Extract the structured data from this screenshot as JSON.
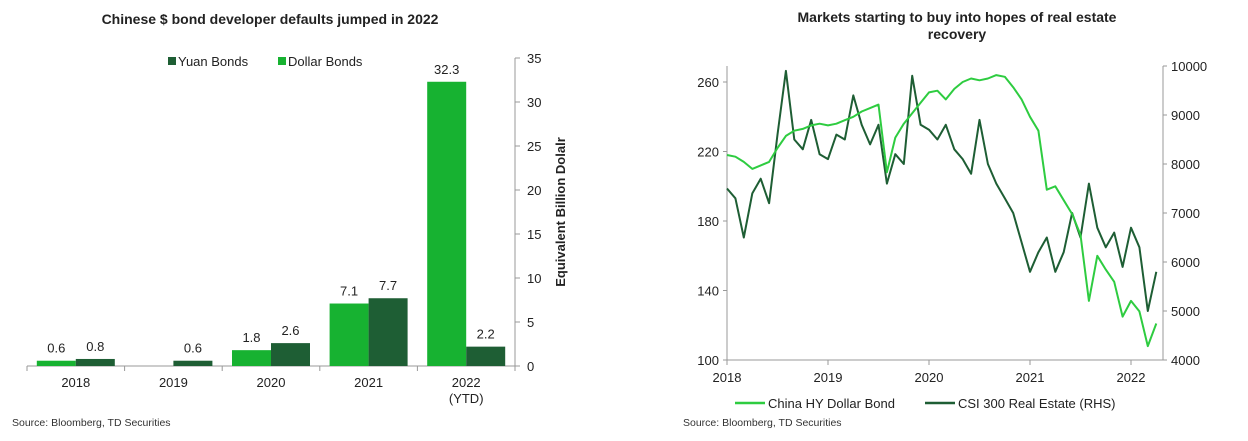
{
  "chart_data": [
    {
      "type": "bar",
      "title": "Chinese $ bond developer defaults  jumped in 2022",
      "categories": [
        "2018",
        "2019",
        "2020",
        "2021",
        "2022\n(YTD)"
      ],
      "series": [
        {
          "name": "Dollar Bonds",
          "color": "#17b231",
          "values": [
            0.6,
            null,
            1.8,
            7.1,
            32.3
          ]
        },
        {
          "name": "Yuan Bonds",
          "color": "#1e5e34",
          "values": [
            0.8,
            0.6,
            2.6,
            7.7,
            2.2
          ]
        }
      ],
      "data_labels": [
        [
          "0.6",
          "",
          "1.8",
          "7.1",
          "32.3"
        ],
        [
          "0.8",
          "0.6",
          "2.6",
          "7.7",
          "2.2"
        ]
      ],
      "legend_order": [
        "Yuan Bonds",
        "Dollar Bonds"
      ],
      "legend_placement": "top-center",
      "ylabel": "Equivalent Billion Dolalr",
      "y_axis_side": "right",
      "ylim": [
        0,
        35
      ],
      "yticks": [
        "0",
        "5",
        "10",
        "15",
        "20",
        "25",
        "30",
        "35"
      ],
      "grid": false,
      "source": "Source: Bloomberg, TD Securities"
    },
    {
      "type": "line",
      "title": "Markets starting to buy into hopes of real estate recovery",
      "xlim": [
        "2018-01",
        "2022-04"
      ],
      "xticks": [
        "2018",
        "2019",
        "2020",
        "2021",
        "2022"
      ],
      "y_left": {
        "lim": [
          100,
          260
        ],
        "ticks": [
          "100",
          "140",
          "180",
          "220",
          "260"
        ]
      },
      "y_right": {
        "lim": [
          4000,
          10000
        ],
        "ticks": [
          "4000",
          "5000",
          "6000",
          "7000",
          "8000",
          "9000",
          "10000"
        ]
      },
      "grid": false,
      "legend_placement": "bottom",
      "series": [
        {
          "name": "China HY Dollar Bond",
          "axis": "left",
          "color": "#2ecc40",
          "points": [
            [
              "2018-01",
              218
            ],
            [
              "2018-02",
              217
            ],
            [
              "2018-03",
              214
            ],
            [
              "2018-04",
              210
            ],
            [
              "2018-05",
              212
            ],
            [
              "2018-06",
              214
            ],
            [
              "2018-07",
              222
            ],
            [
              "2018-08",
              229
            ],
            [
              "2018-09",
              232
            ],
            [
              "2018-10",
              233
            ],
            [
              "2018-11",
              235
            ],
            [
              "2018-12",
              236
            ],
            [
              "2019-01",
              235
            ],
            [
              "2019-02",
              236
            ],
            [
              "2019-03",
              238
            ],
            [
              "2019-04",
              240
            ],
            [
              "2019-05",
              243
            ],
            [
              "2019-06",
              245
            ],
            [
              "2019-07",
              247
            ],
            [
              "2019-08",
              208
            ],
            [
              "2019-09",
              228
            ],
            [
              "2019-10",
              236
            ],
            [
              "2019-11",
              242
            ],
            [
              "2019-12",
              248
            ],
            [
              "2020-01",
              254
            ],
            [
              "2020-02",
              255
            ],
            [
              "2020-03",
              250
            ],
            [
              "2020-04",
              256
            ],
            [
              "2020-05",
              260
            ],
            [
              "2020-06",
              262
            ],
            [
              "2020-07",
              261
            ],
            [
              "2020-08",
              262
            ],
            [
              "2020-09",
              264
            ],
            [
              "2020-10",
              263
            ],
            [
              "2020-11",
              257
            ],
            [
              "2020-12",
              250
            ],
            [
              "2021-01",
              240
            ],
            [
              "2021-02",
              232
            ],
            [
              "2021-03",
              198
            ],
            [
              "2021-04",
              200
            ],
            [
              "2021-05",
              192
            ],
            [
              "2021-06",
              184
            ],
            [
              "2021-07",
              172
            ],
            [
              "2021-08",
              134
            ],
            [
              "2021-09",
              160
            ],
            [
              "2021-10",
              152
            ],
            [
              "2021-11",
              145
            ],
            [
              "2021-12",
              125
            ],
            [
              "2022-01",
              134
            ],
            [
              "2022-02",
              128
            ],
            [
              "2022-03",
              108
            ],
            [
              "2022-04",
              121
            ]
          ]
        },
        {
          "name": "CSI 300 Real Estate (RHS)",
          "axis": "right",
          "color": "#1e5e34",
          "points": [
            [
              "2018-01",
              7500
            ],
            [
              "2018-02",
              7300
            ],
            [
              "2018-03",
              6500
            ],
            [
              "2018-04",
              7400
            ],
            [
              "2018-05",
              7700
            ],
            [
              "2018-06",
              7200
            ],
            [
              "2018-07",
              8600
            ],
            [
              "2018-08",
              9900
            ],
            [
              "2018-09",
              8500
            ],
            [
              "2018-10",
              8300
            ],
            [
              "2018-11",
              8900
            ],
            [
              "2018-12",
              8200
            ],
            [
              "2019-01",
              8100
            ],
            [
              "2019-02",
              8600
            ],
            [
              "2019-03",
              8500
            ],
            [
              "2019-04",
              9400
            ],
            [
              "2019-05",
              8800
            ],
            [
              "2019-06",
              8400
            ],
            [
              "2019-07",
              8800
            ],
            [
              "2019-08",
              7600
            ],
            [
              "2019-09",
              8200
            ],
            [
              "2019-10",
              8000
            ],
            [
              "2019-11",
              9800
            ],
            [
              "2019-12",
              8800
            ],
            [
              "2020-01",
              8700
            ],
            [
              "2020-02",
              8500
            ],
            [
              "2020-03",
              8800
            ],
            [
              "2020-04",
              8300
            ],
            [
              "2020-05",
              8100
            ],
            [
              "2020-06",
              7800
            ],
            [
              "2020-07",
              8900
            ],
            [
              "2020-08",
              8000
            ],
            [
              "2020-09",
              7600
            ],
            [
              "2020-10",
              7300
            ],
            [
              "2020-11",
              7000
            ],
            [
              "2020-12",
              6400
            ],
            [
              "2021-01",
              5800
            ],
            [
              "2021-02",
              6200
            ],
            [
              "2021-03",
              6500
            ],
            [
              "2021-04",
              5800
            ],
            [
              "2021-05",
              6200
            ],
            [
              "2021-06",
              7000
            ],
            [
              "2021-07",
              6500
            ],
            [
              "2021-08",
              7600
            ],
            [
              "2021-09",
              6700
            ],
            [
              "2021-10",
              6300
            ],
            [
              "2021-11",
              6600
            ],
            [
              "2021-12",
              5900
            ],
            [
              "2022-01",
              6700
            ],
            [
              "2022-02",
              6300
            ],
            [
              "2022-03",
              5000
            ],
            [
              "2022-04",
              5800
            ]
          ]
        }
      ],
      "source": "Source: Bloomberg, TD Securities"
    }
  ]
}
